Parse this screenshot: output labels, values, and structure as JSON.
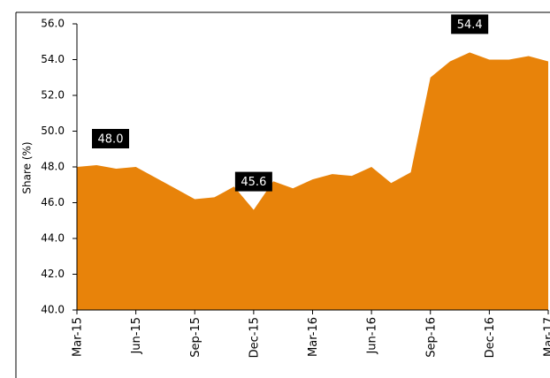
{
  "chart_data": {
    "type": "area",
    "y_label": "Share (%)",
    "categories": [
      "Mar-15",
      null,
      null,
      "Jun-15",
      null,
      null,
      "Sep-15",
      null,
      null,
      "Dec-15",
      null,
      null,
      "Mar-16",
      null,
      null,
      "Jun-16",
      null,
      null,
      "Sep-16",
      null,
      null,
      "Dec-16",
      null,
      null,
      "Mar-17"
    ],
    "series": [
      {
        "name": "Share",
        "color": "#e8830a",
        "values": [
          48.0,
          48.1,
          47.9,
          48.0,
          47.4,
          46.8,
          46.2,
          46.3,
          46.9,
          45.6,
          47.2,
          46.8,
          47.3,
          47.6,
          47.5,
          48.0,
          47.1,
          47.7,
          53.0,
          53.9,
          54.4,
          54.0,
          54.0,
          54.2,
          53.9
        ],
        "value_labels": [
          "48.0",
          null,
          null,
          null,
          null,
          null,
          null,
          null,
          null,
          "45.6",
          null,
          null,
          null,
          null,
          null,
          null,
          null,
          null,
          null,
          null,
          "54.4",
          null,
          null,
          null,
          null
        ]
      }
    ],
    "ylim": [
      40,
      56
    ],
    "yticks": [
      {
        "value": 40,
        "label": "40.0"
      },
      {
        "value": 42,
        "label": "42.0"
      },
      {
        "value": 44,
        "label": "44.0"
      },
      {
        "value": 46,
        "label": "46.0"
      },
      {
        "value": 48,
        "label": "48.0"
      },
      {
        "value": 50,
        "label": "50.0"
      },
      {
        "value": 52,
        "label": "52.0"
      },
      {
        "value": 54,
        "label": "54.0"
      },
      {
        "value": 56,
        "label": "56.0"
      }
    ]
  }
}
